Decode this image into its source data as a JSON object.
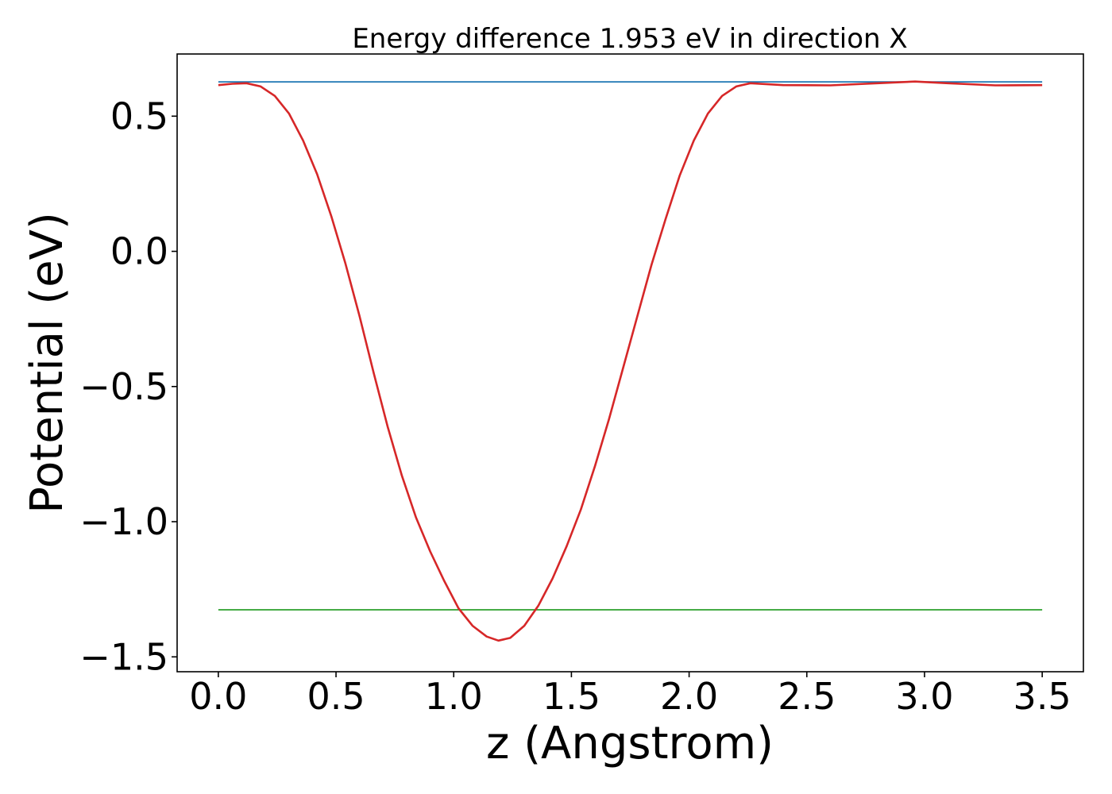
{
  "chart_data": {
    "type": "line",
    "title": "Energy difference 1.953 eV in direction X",
    "xlabel": "z (Angstrom)",
    "ylabel": "Potential (eV)",
    "xlim": [
      -0.175,
      3.675
    ],
    "ylim": [
      -1.555,
      0.73
    ],
    "xticks": [
      0.0,
      0.5,
      1.0,
      1.5,
      2.0,
      2.5,
      3.0,
      3.5
    ],
    "xtick_labels": [
      "0.0",
      "0.5",
      "1.0",
      "1.5",
      "2.0",
      "2.5",
      "3.0",
      "3.5"
    ],
    "yticks": [
      0.5,
      0.0,
      -0.5,
      -1.0,
      -1.5
    ],
    "ytick_labels": [
      "0.5",
      "0.0",
      "−0.5",
      "−1.0",
      "−1.5"
    ],
    "grid": false,
    "series": [
      {
        "color": "#1f77b4",
        "x": [
          0.0,
          3.5
        ],
        "y": [
          0.627,
          0.627
        ]
      },
      {
        "color": "#2ca02c",
        "x": [
          0.0,
          3.5
        ],
        "y": [
          -1.326,
          -1.326
        ]
      },
      {
        "color": "#d62728",
        "x": [
          0.0,
          0.06,
          0.12,
          0.18,
          0.24,
          0.3,
          0.36,
          0.42,
          0.48,
          0.54,
          0.6,
          0.66,
          0.72,
          0.78,
          0.84,
          0.9,
          0.96,
          1.02,
          1.08,
          1.14,
          1.19,
          1.24,
          1.3,
          1.36,
          1.42,
          1.48,
          1.54,
          1.6,
          1.66,
          1.72,
          1.78,
          1.84,
          1.9,
          1.96,
          2.02,
          2.08,
          2.14,
          2.2,
          2.26,
          2.4,
          2.6,
          2.8,
          2.96,
          3.1,
          3.3,
          3.5
        ],
        "y": [
          0.615,
          0.62,
          0.622,
          0.61,
          0.575,
          0.51,
          0.41,
          0.285,
          0.13,
          -0.045,
          -0.24,
          -0.45,
          -0.65,
          -0.83,
          -0.985,
          -1.11,
          -1.22,
          -1.32,
          -1.385,
          -1.425,
          -1.44,
          -1.43,
          -1.385,
          -1.31,
          -1.21,
          -1.09,
          -0.955,
          -0.795,
          -0.62,
          -0.43,
          -0.24,
          -0.05,
          0.12,
          0.28,
          0.41,
          0.51,
          0.575,
          0.61,
          0.622,
          0.615,
          0.614,
          0.622,
          0.628,
          0.622,
          0.614,
          0.615
        ]
      }
    ]
  }
}
